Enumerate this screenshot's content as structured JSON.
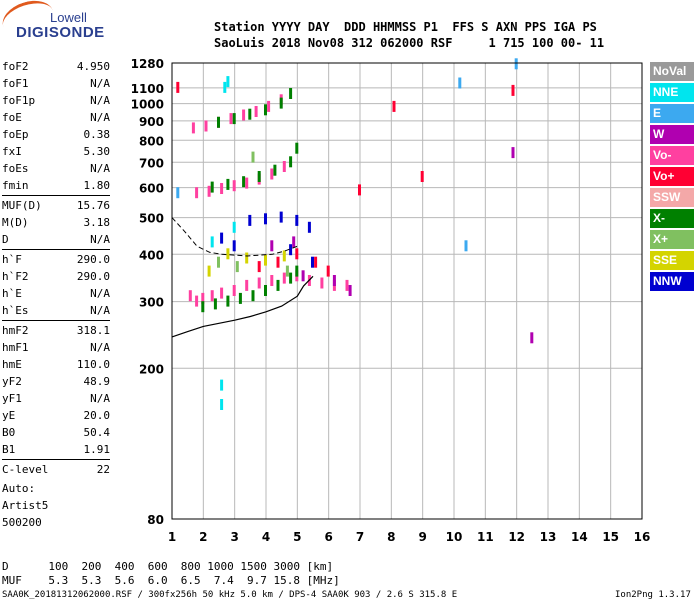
{
  "logo": {
    "line1": "Lowell",
    "line2": "DIGISONDE"
  },
  "header": {
    "row1": "Station YYYY DAY  DDD HHMMSS P1  FFS S AXN PPS IGA PS",
    "row2": "SaoLuis 2018 Nov08 312 062000 RSF     1 715 100 00- 11"
  },
  "params": [
    [
      {
        "k": "foF2",
        "v": "4.950"
      },
      {
        "k": "foF1",
        "v": "N/A"
      },
      {
        "k": "foF1p",
        "v": "N/A"
      },
      {
        "k": "foE",
        "v": "N/A"
      },
      {
        "k": "foEp",
        "v": "0.38"
      },
      {
        "k": "fxI",
        "v": "5.30"
      },
      {
        "k": "foEs",
        "v": "N/A"
      },
      {
        "k": "fmin",
        "v": "1.80"
      }
    ],
    [
      {
        "k": "MUF(D)",
        "v": "15.76"
      },
      {
        "k": "M(D)",
        "v": "3.18"
      },
      {
        "k": "D",
        "v": "N/A"
      }
    ],
    [
      {
        "k": "h`F",
        "v": "290.0"
      },
      {
        "k": "h`F2",
        "v": "290.0"
      },
      {
        "k": "h`E",
        "v": "N/A"
      },
      {
        "k": "h`Es",
        "v": "N/A"
      }
    ],
    [
      {
        "k": "hmF2",
        "v": "318.1"
      },
      {
        "k": "hmF1",
        "v": "N/A"
      },
      {
        "k": "hmE",
        "v": "110.0"
      },
      {
        "k": "yF2",
        "v": "48.9"
      },
      {
        "k": "yF1",
        "v": "N/A"
      },
      {
        "k": "yE",
        "v": "20.0"
      },
      {
        "k": "B0",
        "v": "50.4"
      },
      {
        "k": "B1",
        "v": "1.91"
      }
    ],
    [
      {
        "k": "C-level",
        "v": "22"
      }
    ]
  ],
  "auto": {
    "line1": "Auto:",
    "line2": "Artist5",
    "line3": "500200"
  },
  "legend": [
    {
      "label": "NoVal",
      "color": "#9a9a9a"
    },
    {
      "label": "NNE",
      "color": "#00e5ee"
    },
    {
      "label": "E",
      "color": "#3ca9f0"
    },
    {
      "label": "W",
      "color": "#b000b0"
    },
    {
      "label": "Vo-",
      "color": "#ff40a0"
    },
    {
      "label": "Vo+",
      "color": "#ff0033"
    },
    {
      "label": "SSW",
      "color": "#f4a8a8"
    },
    {
      "label": "X-",
      "color": "#008000"
    },
    {
      "label": "X+",
      "color": "#80c060"
    },
    {
      "label": "SSE",
      "color": "#d4d400"
    },
    {
      "label": "NNW",
      "color": "#0000d0"
    }
  ],
  "chart_data": {
    "type": "scatter",
    "title": "",
    "xlabel": "",
    "ylabel": "",
    "xlim": [
      1,
      16
    ],
    "ylim": [
      80,
      1280
    ],
    "x_ticks": [
      "1",
      "2",
      "3",
      "4",
      "5",
      "6",
      "7",
      "8",
      "9",
      "10",
      "11",
      "12",
      "13",
      "14",
      "15",
      "16"
    ],
    "y_ticks": [
      "80",
      "200",
      "300",
      "400",
      "500",
      "600",
      "700",
      "800",
      "900",
      "1000",
      "1100",
      "1280"
    ],
    "y_scale": "log",
    "grid": true,
    "series": [
      {
        "color": "#ff40a0",
        "points": [
          [
            1.6,
            310
          ],
          [
            1.8,
            300
          ],
          [
            2.0,
            305
          ],
          [
            2.3,
            310
          ],
          [
            2.6,
            315
          ],
          [
            3.0,
            320
          ],
          [
            3.4,
            330
          ],
          [
            3.8,
            335
          ],
          [
            4.2,
            340
          ],
          [
            4.6,
            345
          ],
          [
            5.0,
            350
          ],
          [
            5.4,
            340
          ],
          [
            5.8,
            335
          ],
          [
            6.2,
            330
          ],
          [
            6.6,
            330
          ],
          [
            1.8,
            580
          ],
          [
            2.2,
            585
          ],
          [
            2.6,
            595
          ],
          [
            3.0,
            605
          ],
          [
            3.4,
            615
          ],
          [
            3.8,
            630
          ],
          [
            4.2,
            650
          ],
          [
            4.6,
            680
          ],
          [
            1.7,
            860
          ],
          [
            2.1,
            870
          ],
          [
            2.5,
            890
          ],
          [
            2.9,
            910
          ],
          [
            3.3,
            930
          ],
          [
            3.7,
            950
          ],
          [
            4.1,
            980
          ],
          [
            4.5,
            1020
          ]
        ]
      },
      {
        "color": "#008000",
        "points": [
          [
            2.0,
            290
          ],
          [
            2.4,
            295
          ],
          [
            2.8,
            300
          ],
          [
            3.2,
            305
          ],
          [
            3.6,
            310
          ],
          [
            4.0,
            320
          ],
          [
            4.4,
            330
          ],
          [
            4.8,
            345
          ],
          [
            5.0,
            360
          ],
          [
            2.3,
            600
          ],
          [
            2.8,
            610
          ],
          [
            3.3,
            620
          ],
          [
            3.8,
            640
          ],
          [
            4.3,
            665
          ],
          [
            4.8,
            700
          ],
          [
            5.0,
            760
          ],
          [
            2.5,
            890
          ],
          [
            3.0,
            910
          ],
          [
            3.5,
            935
          ],
          [
            4.0,
            960
          ],
          [
            4.5,
            1000
          ],
          [
            4.8,
            1060
          ]
        ]
      },
      {
        "color": "#0000d0",
        "points": [
          [
            3.5,
            490
          ],
          [
            4.0,
            495
          ],
          [
            4.5,
            500
          ],
          [
            5.0,
            490
          ],
          [
            5.4,
            470
          ],
          [
            2.6,
            440
          ],
          [
            3.0,
            420
          ],
          [
            4.8,
            410
          ],
          [
            5.5,
            380
          ]
        ]
      },
      {
        "color": "#ff0033",
        "points": [
          [
            3.8,
            370
          ],
          [
            4.4,
            380
          ],
          [
            5.0,
            400
          ],
          [
            5.6,
            380
          ],
          [
            6.0,
            360
          ],
          [
            7.0,
            590
          ],
          [
            8.1,
            980
          ],
          [
            9.0,
            640
          ],
          [
            11.9,
            1080
          ],
          [
            1.2,
            1100
          ]
        ]
      },
      {
        "color": "#b000b0",
        "points": [
          [
            4.2,
            420
          ],
          [
            4.9,
            430
          ],
          [
            5.2,
            350
          ],
          [
            6.2,
            340
          ],
          [
            6.7,
            320
          ],
          [
            12.5,
            240
          ],
          [
            11.9,
            740
          ]
        ]
      },
      {
        "color": "#d4d400",
        "points": [
          [
            2.8,
            400
          ],
          [
            3.4,
            390
          ],
          [
            4.0,
            385
          ],
          [
            4.6,
            395
          ],
          [
            2.2,
            360
          ]
        ]
      },
      {
        "color": "#00e5ee",
        "points": [
          [
            2.6,
            160
          ],
          [
            2.6,
            180
          ],
          [
            2.8,
            1140
          ],
          [
            2.7,
            1100
          ],
          [
            2.3,
            430
          ],
          [
            3.0,
            470
          ]
        ]
      },
      {
        "color": "#80c060",
        "points": [
          [
            2.5,
            380
          ],
          [
            3.1,
            370
          ],
          [
            4.7,
            360
          ],
          [
            3.6,
            720
          ]
        ]
      },
      {
        "color": "#3ca9f0",
        "points": [
          [
            1.2,
            580
          ],
          [
            10.2,
            1130
          ],
          [
            12.0,
            1270
          ],
          [
            10.4,
            420
          ]
        ]
      }
    ],
    "curve_black": [
      [
        1.0,
        242
      ],
      [
        1.5,
        250
      ],
      [
        2.0,
        258
      ],
      [
        2.5,
        263
      ],
      [
        3.0,
        268
      ],
      [
        3.5,
        274
      ],
      [
        4.0,
        282
      ],
      [
        4.5,
        292
      ],
      [
        5.0,
        310
      ],
      [
        5.2,
        330
      ],
      [
        5.5,
        350
      ]
    ],
    "curve_dashed": [
      [
        1.0,
        500
      ],
      [
        1.4,
        460
      ],
      [
        1.8,
        420
      ],
      [
        2.2,
        405
      ],
      [
        2.6,
        400
      ],
      [
        3.0,
        398
      ],
      [
        3.4,
        396
      ],
      [
        3.8,
        398
      ],
      [
        4.2,
        400
      ],
      [
        4.6,
        408
      ],
      [
        5.0,
        420
      ]
    ]
  },
  "footer": {
    "row_d": "D      100  200  400  600  800 1000 1500 3000 [km]",
    "row_muf": "MUF    5.3  5.3  5.6  6.0  6.5  7.4  9.7 15.8 [MHz]",
    "file": "SAA0K_20181312062000.RSF / 300fx256h 50 kHz 5.0 km / DPS-4 SAA0K 903 / 2.6 S 315.8 E",
    "version": "Ion2Png 1.3.17"
  }
}
